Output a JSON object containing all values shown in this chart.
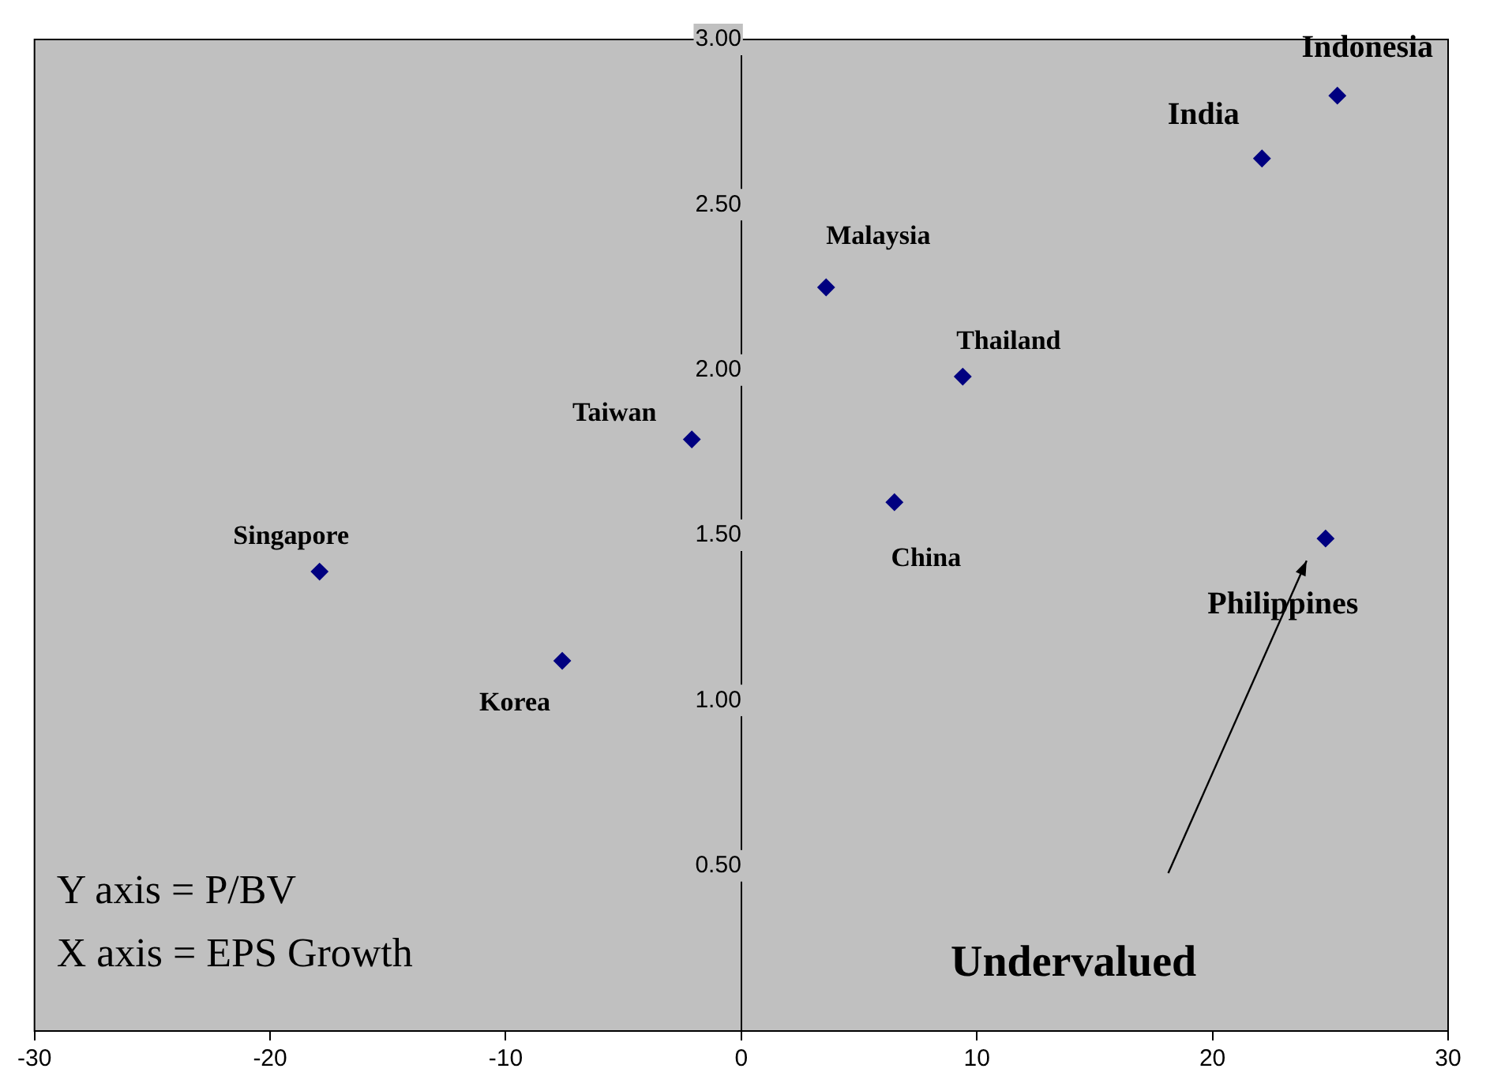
{
  "chart_data": {
    "type": "scatter",
    "x": [
      25.3,
      22.1,
      3.6,
      9.4,
      -2.1,
      6.5,
      24.8,
      -17.9,
      -7.6
    ],
    "values": [
      2.83,
      2.64,
      2.25,
      1.98,
      1.79,
      1.6,
      1.49,
      1.39,
      1.12
    ],
    "color": "#000080",
    "marker": "diamond",
    "xlim": [
      -30,
      30
    ],
    "xticks": [
      -30,
      -20,
      -10,
      0,
      10,
      20,
      30
    ],
    "ylim": [
      0,
      3
    ],
    "yticks": [
      {
        "value": 0.5,
        "label": "0.50"
      },
      {
        "value": 1,
        "label": "1.00"
      },
      {
        "value": 1.5,
        "label": "1.50"
      },
      {
        "value": 2,
        "label": "2.00"
      },
      {
        "value": 2.5,
        "label": "2.50"
      },
      {
        "value": 3,
        "label": "3.00"
      }
    ],
    "grid": false,
    "legend": false,
    "annotations": [
      {
        "text": "Indonesia",
        "x": 25.3,
        "y": 2.83
      },
      {
        "text": "India",
        "x": 22.1,
        "y": 2.64
      },
      {
        "text": "Malaysia",
        "x": 3.6,
        "y": 2.25
      },
      {
        "text": "Thailand",
        "x": 9.4,
        "y": 1.98
      },
      {
        "text": "Taiwan",
        "x": -2.1,
        "y": 1.79
      },
      {
        "text": "China",
        "x": 6.5,
        "y": 1.6
      },
      {
        "text": "Philippines",
        "x": 24.8,
        "y": 1.49
      },
      {
        "text": "Singapore",
        "x": -17.9,
        "y": 1.39
      },
      {
        "text": "Korea",
        "x": -7.6,
        "y": 1.12
      },
      "Undervalued",
      "Y axis = P/BV",
      "X axis = EPS Growth"
    ]
  }
}
